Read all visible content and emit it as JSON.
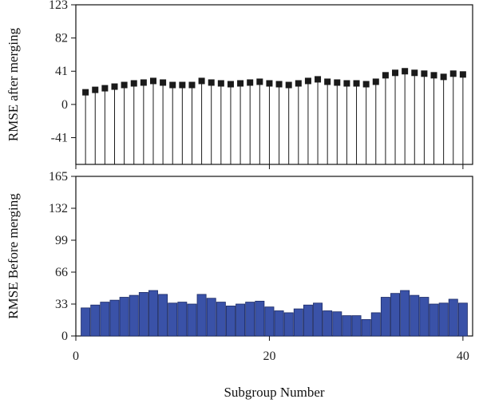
{
  "chart_data": [
    {
      "type": "stem",
      "ylabel": "RMSE after merging",
      "xlabel": "",
      "xlim": [
        0,
        41
      ],
      "ylim": [
        -74,
        123
      ],
      "yticks": [
        -41,
        0,
        41,
        82,
        123
      ],
      "baseline": -74,
      "marker_color": "#1a1a1a",
      "stem_color": "#1a1a1a",
      "series": [
        {
          "x": [
            1,
            2,
            3,
            4,
            5,
            6,
            7,
            8,
            9,
            10,
            11,
            12,
            13,
            14,
            15,
            16,
            17,
            18,
            19,
            20,
            21,
            22,
            23,
            24,
            25,
            26,
            27,
            28,
            29,
            30,
            31,
            32,
            33,
            34,
            35,
            36,
            37,
            38,
            39,
            40
          ],
          "values": [
            15,
            18,
            20,
            22,
            24,
            26,
            27,
            29,
            27,
            24,
            24,
            24,
            29,
            27,
            26,
            25,
            26,
            27,
            28,
            26,
            25,
            24,
            26,
            29,
            31,
            28,
            27,
            26,
            26,
            25,
            28,
            36,
            39,
            41,
            39,
            38,
            36,
            34,
            38,
            37
          ]
        }
      ]
    },
    {
      "type": "bar",
      "ylabel": "RMSE Before merging",
      "xlabel": "Subgroup Number",
      "xlim": [
        0,
        41
      ],
      "ylim": [
        0,
        165
      ],
      "yticks": [
        0,
        33,
        66,
        99,
        132,
        165
      ],
      "xticks": [
        0,
        20,
        40
      ],
      "bar_color": "#3a52a8",
      "series": [
        {
          "x": [
            1,
            2,
            3,
            4,
            5,
            6,
            7,
            8,
            9,
            10,
            11,
            12,
            13,
            14,
            15,
            16,
            17,
            18,
            19,
            20,
            21,
            22,
            23,
            24,
            25,
            26,
            27,
            28,
            29,
            30,
            31,
            32,
            33,
            34,
            35,
            36,
            37,
            38,
            39,
            40
          ],
          "values": [
            29,
            32,
            35,
            37,
            40,
            42,
            45,
            47,
            43,
            34,
            35,
            33,
            43,
            39,
            35,
            31,
            33,
            35,
            36,
            30,
            26,
            24,
            28,
            32,
            34,
            26,
            25,
            21,
            21,
            17,
            24,
            40,
            44,
            47,
            42,
            40,
            33,
            34,
            38,
            34
          ]
        }
      ]
    }
  ]
}
